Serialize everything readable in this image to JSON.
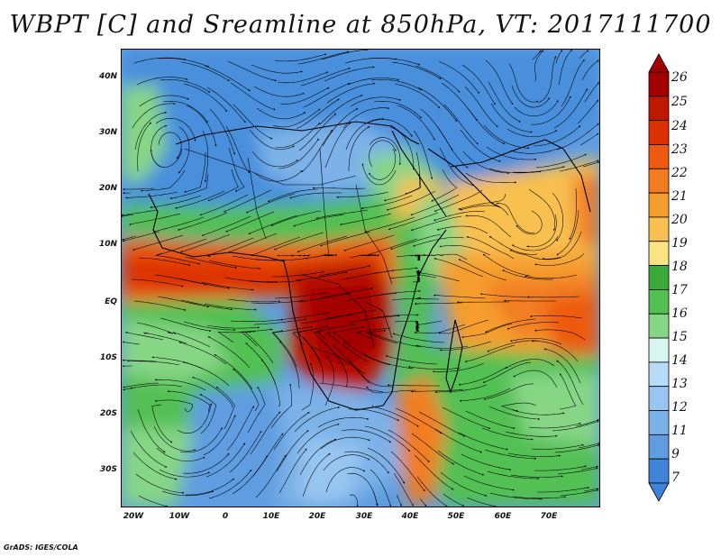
{
  "title": "WBPT [C] and Sreamline at 850hPa, VT: 2017111700",
  "credit": "GrADS: IGES/COLA",
  "map": {
    "lat_labels": [
      "40N",
      "30N",
      "20N",
      "10N",
      "EQ",
      "10S",
      "20S",
      "30S"
    ],
    "lon_labels": [
      "20W",
      "10W",
      "0",
      "10E",
      "20E",
      "30E",
      "40E",
      "50E",
      "60E",
      "70E"
    ],
    "lon_extent": [
      -22,
      80
    ],
    "lat_extent": [
      -36,
      45
    ]
  },
  "colorbar": {
    "labels": [
      "26",
      "25",
      "24",
      "23",
      "22",
      "21",
      "20",
      "19",
      "18",
      "17",
      "16",
      "15",
      "14",
      "13",
      "12",
      "11",
      "9",
      "7"
    ],
    "colors": [
      "#a50000",
      "#c01800",
      "#dd3000",
      "#ee5a10",
      "#f27d20",
      "#f59e2e",
      "#f8c050",
      "#fae482",
      "#3aab3a",
      "#52c052",
      "#86d686",
      "#d8f5f0",
      "#b8dcf5",
      "#98c6f0",
      "#7bb2e8",
      "#5f9de0",
      "#3f84d8"
    ]
  }
}
